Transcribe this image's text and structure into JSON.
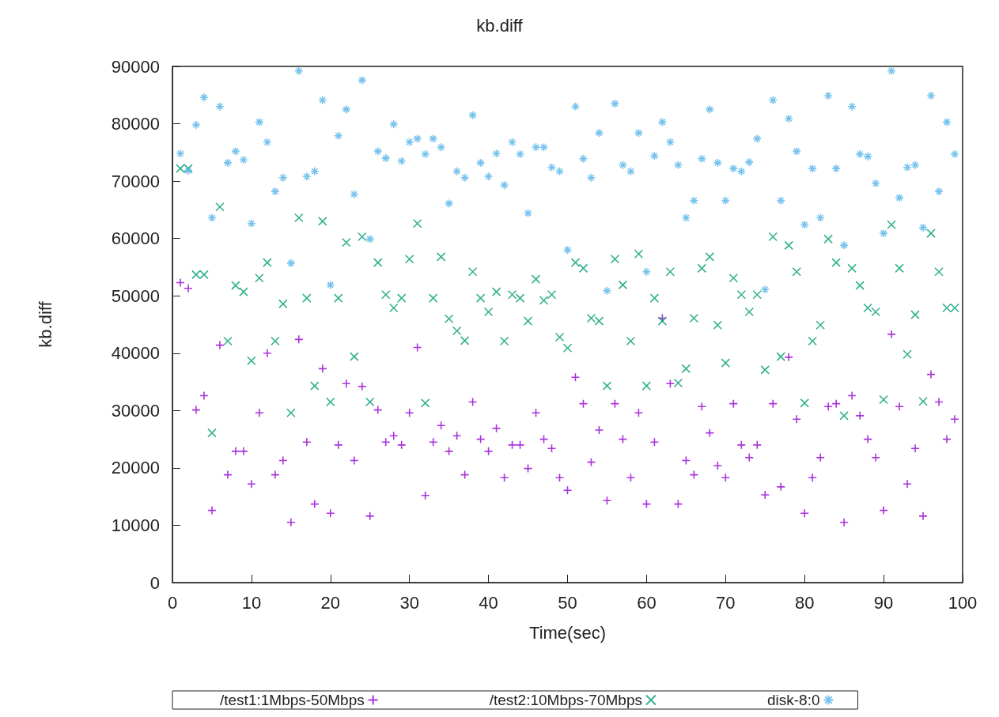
{
  "chart_data": {
    "type": "scatter",
    "title": "kb.diff",
    "xlabel": "Time(sec)",
    "ylabel": "kb.diff",
    "xlim": [
      0,
      100
    ],
    "xticks": [
      0,
      10,
      20,
      30,
      40,
      50,
      60,
      70,
      80,
      90,
      100
    ],
    "ylim": [
      0,
      90000
    ],
    "yticks": [
      0,
      10000,
      20000,
      30000,
      40000,
      50000,
      60000,
      70000,
      80000,
      90000
    ],
    "grid": false,
    "legend": "bottom",
    "x": [
      1,
      2,
      3,
      4,
      5,
      6,
      7,
      8,
      9,
      10,
      11,
      12,
      13,
      14,
      15,
      16,
      17,
      18,
      19,
      20,
      21,
      22,
      23,
      24,
      25,
      26,
      27,
      28,
      29,
      30,
      31,
      32,
      33,
      34,
      35,
      36,
      37,
      38,
      39,
      40,
      41,
      42,
      43,
      44,
      45,
      46,
      47,
      48,
      49,
      50,
      51,
      52,
      53,
      54,
      55,
      56,
      57,
      58,
      59,
      60,
      61,
      62,
      63,
      64,
      65,
      66,
      67,
      68,
      69,
      70,
      71,
      72,
      73,
      74,
      75,
      76,
      77,
      78,
      79,
      80,
      81,
      82,
      83,
      84,
      85,
      86,
      87,
      88,
      89,
      90,
      91,
      92,
      93,
      94,
      95,
      96,
      97,
      98,
      99
    ],
    "series": [
      {
        "name": "/test1:1Mbps-50Mbps",
        "color": "#9400d3",
        "values": [
          52300,
          51300,
          30100,
          32600,
          12600,
          41400,
          18800,
          22900,
          22900,
          17200,
          29600,
          40000,
          18800,
          21300,
          10500,
          42400,
          24500,
          13700,
          37300,
          12100,
          24000,
          34700,
          21300,
          34200,
          11600,
          30100,
          24500,
          25600,
          24000,
          29600,
          41000,
          15200,
          24500,
          27400,
          22900,
          25600,
          18800,
          31500,
          25000,
          22900,
          26900,
          18300,
          24000,
          24000,
          19900,
          29600,
          25000,
          23400,
          18300,
          16100,
          35800,
          31200,
          21000,
          26600,
          14300,
          31200,
          25000,
          18300,
          29600,
          13700,
          24500,
          46100,
          34700,
          13700,
          21300,
          18800,
          30700,
          26100,
          20400,
          18300,
          31200,
          24000,
          21800,
          24000,
          15300,
          31200,
          16700,
          39300,
          28500,
          12100,
          18300,
          21800,
          30700,
          31200,
          10500,
          32600,
          29100,
          25000,
          21800,
          12600,
          43300,
          30700,
          17200,
          23400,
          11600,
          36300,
          31500,
          25000,
          28500
        ]
      },
      {
        "name": "/test2:10Mbps-70Mbps",
        "color": "#009e73",
        "values": [
          72200,
          72200,
          53700,
          53700,
          26100,
          65500,
          42100,
          51800,
          50700,
          38700,
          53100,
          55800,
          42100,
          48600,
          29600,
          63600,
          49600,
          34300,
          63000,
          31500,
          49600,
          59300,
          39400,
          60300,
          31500,
          55800,
          50200,
          47900,
          49600,
          56400,
          62600,
          31300,
          49600,
          56800,
          46000,
          43900,
          42200,
          54200,
          49600,
          47200,
          50700,
          42100,
          50200,
          49600,
          45600,
          52900,
          49200,
          50200,
          42800,
          40900,
          55800,
          54800,
          46100,
          45600,
          34300,
          56400,
          51900,
          42100,
          57300,
          34300,
          49600,
          45600,
          54200,
          34800,
          37300,
          46100,
          54800,
          56800,
          44900,
          38300,
          53100,
          50200,
          47200,
          50200,
          37100,
          60300,
          39400,
          58800,
          54200,
          31300,
          42100,
          44900,
          59900,
          55800,
          29100,
          54800,
          51800,
          47900,
          47200,
          31900,
          62400,
          54800,
          39800,
          46700,
          31600,
          60900,
          54200,
          47900,
          47900
        ]
      },
      {
        "name": "disk-8:0",
        "color": "#56b4e9",
        "values": [
          74800,
          71800,
          79800,
          84600,
          63600,
          83000,
          73200,
          75200,
          73700,
          62600,
          80300,
          76800,
          68200,
          70600,
          55700,
          89200,
          70800,
          71700,
          84100,
          51900,
          77900,
          82500,
          67700,
          87600,
          59900,
          75200,
          74000,
          79900,
          73500,
          76800,
          77400,
          74700,
          77400,
          75900,
          66100,
          71700,
          70600,
          81500,
          73200,
          70800,
          74800,
          69300,
          76800,
          74700,
          64400,
          75900,
          75900,
          72400,
          71700,
          58000,
          83000,
          73900,
          70600,
          78400,
          50900,
          83500,
          72800,
          71700,
          78400,
          54200,
          74400,
          80300,
          76800,
          72800,
          63600,
          66600,
          73900,
          82500,
          73200,
          66600,
          72200,
          71700,
          73300,
          77400,
          51100,
          84100,
          66600,
          80900,
          75200,
          62400,
          72200,
          63600,
          84900,
          72200,
          58800,
          83000,
          74700,
          74300,
          69600,
          60900,
          89200,
          67100,
          72400,
          72800,
          61900,
          84900,
          68200,
          80300,
          74700
        ]
      }
    ]
  }
}
